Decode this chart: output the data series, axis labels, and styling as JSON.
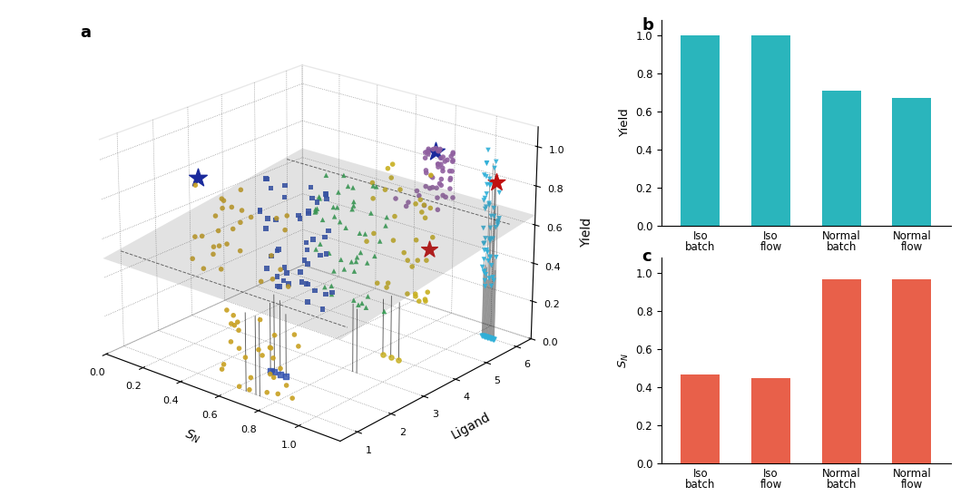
{
  "panel_b": {
    "categories": [
      "Iso\nbatch",
      "Iso\nflow",
      "Normal\nbatch",
      "Normal\nflow"
    ],
    "values": [
      1.0,
      1.0,
      0.71,
      0.67
    ],
    "color": "#2ab5bc",
    "ylabel": "Yield",
    "ylim": [
      0,
      1.08
    ],
    "yticks": [
      0,
      0.2,
      0.4,
      0.6,
      0.8,
      1.0
    ],
    "label": "b"
  },
  "panel_c": {
    "categories": [
      "Iso\nbatch",
      "Iso\nflow",
      "Normal\nbatch",
      "Normal\nflow"
    ],
    "values": [
      0.47,
      0.45,
      0.97,
      0.97
    ],
    "color": "#e8604a",
    "ylabel": "$S_N$",
    "ylim": [
      0,
      1.08
    ],
    "yticks": [
      0,
      0.2,
      0.4,
      0.6,
      0.8,
      1.0
    ],
    "label": "c"
  },
  "colors": {
    "1": "#c8a020",
    "2": "#3050b0",
    "3": "#30a050",
    "4": "#c8b020",
    "5": "#9060a0",
    "6": "#30b0d8"
  }
}
